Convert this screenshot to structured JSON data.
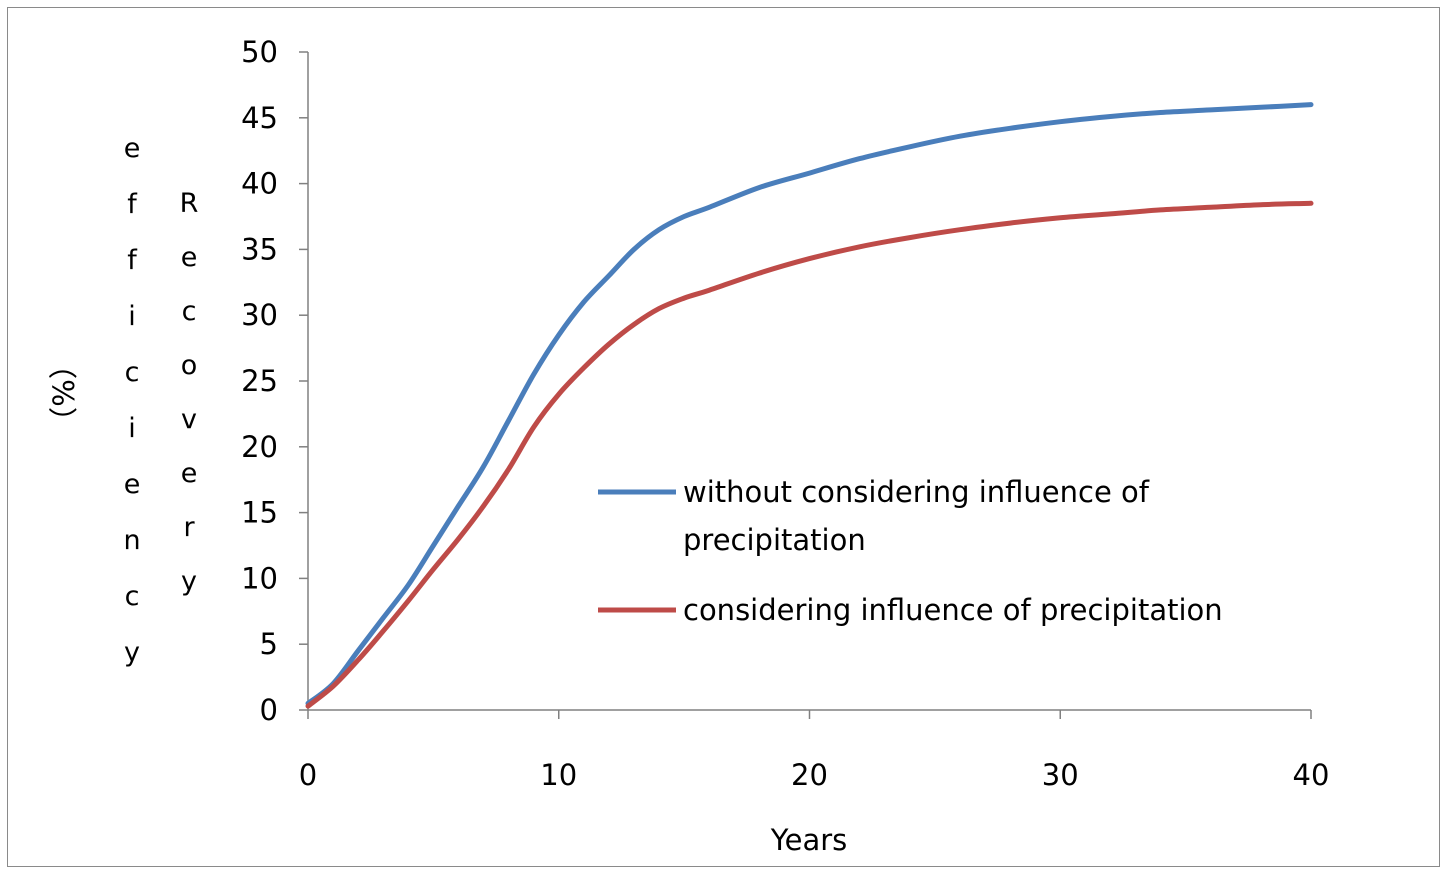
{
  "chart_data": {
    "type": "line",
    "title": "",
    "xlabel": "Years",
    "ylabel": "Recovery efficiency (%)",
    "ylabel_parts": {
      "left_column": "efficiency",
      "right_column": "Recovery",
      "unit": "（%）"
    },
    "xlim": [
      0,
      40
    ],
    "ylim": [
      0,
      50
    ],
    "x_ticks": [
      "0",
      "10",
      "20",
      "30",
      "40"
    ],
    "y_ticks": [
      "0",
      "5",
      "10",
      "15",
      "20",
      "25",
      "30",
      "35",
      "40",
      "45",
      "50"
    ],
    "grid": false,
    "legend_position": "center-right",
    "x": [
      0,
      1,
      2,
      3,
      4,
      5,
      6,
      7,
      8,
      9,
      10,
      11,
      12,
      13,
      14,
      15,
      16,
      18,
      20,
      22,
      24,
      26,
      28,
      30,
      32,
      34,
      36,
      38,
      40
    ],
    "series": [
      {
        "name": "without considering influence of precipitation",
        "legend_lines": [
          "without considering influence of",
          "precipitation"
        ],
        "color": "#4A7EBB",
        "values": [
          0.5,
          2.0,
          4.5,
          7.0,
          9.5,
          12.5,
          15.5,
          18.5,
          22.0,
          25.5,
          28.5,
          31.0,
          33.0,
          35.0,
          36.5,
          37.5,
          38.2,
          39.7,
          40.8,
          41.9,
          42.8,
          43.6,
          44.2,
          44.7,
          45.1,
          45.4,
          45.6,
          45.8,
          46.0
        ]
      },
      {
        "name": "considering influence of precipitation",
        "legend_lines": [
          "considering influence of precipitation"
        ],
        "color": "#BE4B48",
        "values": [
          0.3,
          1.8,
          3.8,
          6.0,
          8.3,
          10.7,
          13.0,
          15.5,
          18.3,
          21.5,
          24.0,
          26.0,
          27.8,
          29.3,
          30.5,
          31.3,
          31.9,
          33.2,
          34.3,
          35.2,
          35.9,
          36.5,
          37.0,
          37.4,
          37.7,
          38.0,
          38.2,
          38.4,
          38.5
        ]
      }
    ]
  }
}
